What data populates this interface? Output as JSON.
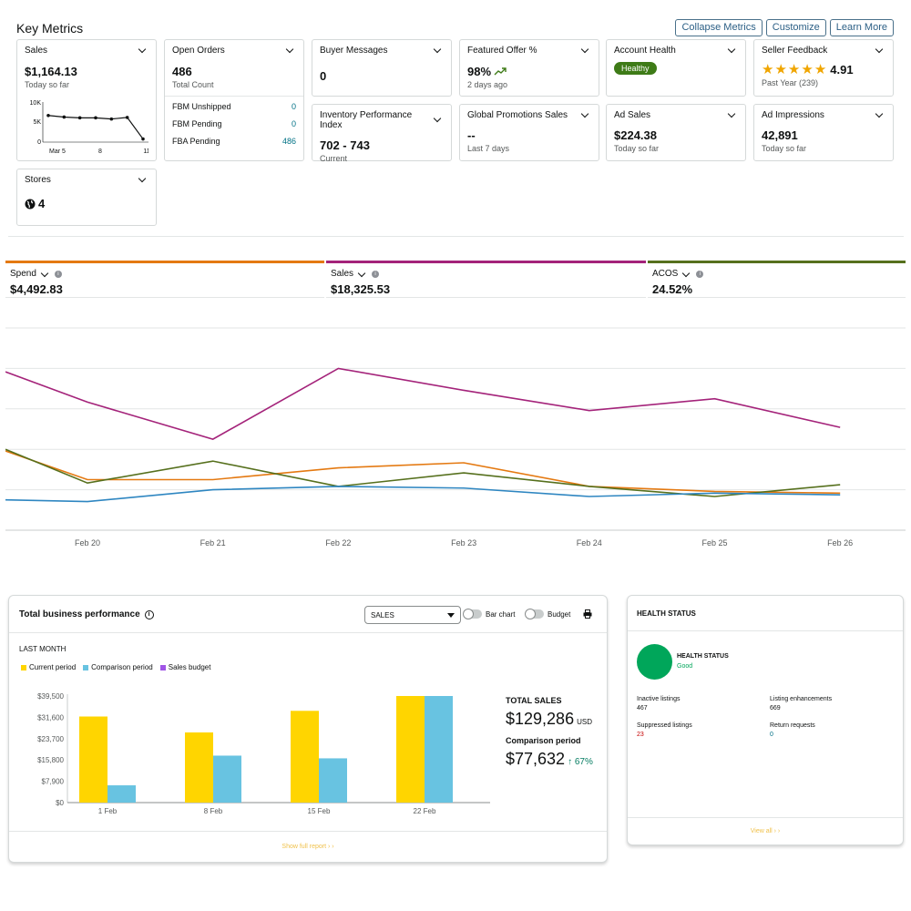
{
  "key_metrics": {
    "title": "Key Metrics",
    "actions": [
      "Collapse Metrics",
      "Customize",
      "Learn More"
    ],
    "sales": {
      "label": "Sales",
      "value": "$1,164.13",
      "sub": "Today so far",
      "sparkline": {
        "y_ticks": [
          "10K",
          "5K",
          "0"
        ],
        "x_ticks": [
          "Mar 5",
          "8",
          "11"
        ],
        "values": [
          6800,
          6400,
          6200,
          6200,
          5900,
          6300,
          800
        ]
      }
    },
    "open_orders": {
      "label": "Open Orders",
      "value": "486",
      "sub": "Total Count",
      "rows": [
        {
          "label": "FBM Unshipped",
          "value": "0"
        },
        {
          "label": "FBM Pending",
          "value": "0"
        },
        {
          "label": "FBA Pending",
          "value": "486"
        }
      ]
    },
    "buyer_messages": {
      "label": "Buyer Messages",
      "value": "0"
    },
    "featured_offer": {
      "label": "Featured Offer %",
      "value": "98%",
      "sub": "2 days ago"
    },
    "account_health": {
      "label": "Account Health",
      "status": "Healthy"
    },
    "seller_feedback": {
      "label": "Seller Feedback",
      "rating": "4.91",
      "stars": 5,
      "sub": "Past Year (239)"
    },
    "inventory": {
      "label": "Inventory Performance Index",
      "value": "702 - 743",
      "sub": "Current"
    },
    "global_promotions": {
      "label": "Global Promotions Sales",
      "value": "--",
      "sub": "Last 7 days"
    },
    "ad_sales": {
      "label": "Ad Sales",
      "value": "$224.38",
      "sub": "Today so far"
    },
    "ad_impressions": {
      "label": "Ad Impressions",
      "value": "42,891",
      "sub": "Today so far"
    },
    "stores": {
      "label": "Stores",
      "value": "4"
    }
  },
  "campaign": {
    "tabs": [
      {
        "label": "Spend",
        "value": "$4,492.83",
        "color": "#e47911"
      },
      {
        "label": "Sales",
        "value": "$18,325.53",
        "color": "#a4237a"
      },
      {
        "label": "ACOS",
        "value": "24.52%",
        "color": "#56701d"
      }
    ],
    "chart_data": {
      "type": "line",
      "x": [
        "Feb 20",
        "Feb 21",
        "Feb 22",
        "Feb 23",
        "Feb 24",
        "Feb 25",
        "Feb 26"
      ],
      "series": [
        {
          "color": "#a4237a",
          "values": [
            76,
            54,
            96,
            83,
            71,
            78,
            61
          ]
        },
        {
          "color": "#e47911",
          "values": [
            30,
            30,
            37,
            40,
            26,
            23,
            22
          ]
        },
        {
          "color": "#56701d",
          "values": [
            28,
            41,
            26,
            34,
            26,
            20,
            27
          ]
        },
        {
          "color": "#2e86c1",
          "values": [
            17,
            24,
            26,
            25,
            20,
            22,
            21
          ]
        }
      ],
      "start_values": [
        94,
        47,
        48,
        18
      ],
      "ylim": [
        0,
        120
      ]
    }
  },
  "tbp": {
    "title": "Total business performance",
    "select": "SALES",
    "toggles": [
      "Bar chart",
      "Budget"
    ],
    "period": "LAST MONTH",
    "legend": [
      {
        "label": "Current period",
        "color": "#ffd500"
      },
      {
        "label": "Comparison period",
        "color": "#68c3e1"
      },
      {
        "label": "Sales budget",
        "color": "#a055e6"
      }
    ],
    "chart_data": {
      "type": "bar",
      "categories": [
        "1 Feb",
        "8 Feb",
        "15 Feb",
        "22 Feb"
      ],
      "series": [
        {
          "name": "Current period",
          "values": [
            31900,
            26000,
            34000,
            39500
          ]
        },
        {
          "name": "Comparison period",
          "values": [
            6400,
            17400,
            16400,
            39500
          ]
        }
      ],
      "y_ticks": [
        "$0",
        "$7,900",
        "$15,800",
        "$23,700",
        "$31,600",
        "$39,500"
      ],
      "ylim": [
        0,
        39500
      ]
    },
    "total_label": "TOTAL SALES",
    "total_value": "$129,286",
    "total_unit": "USD",
    "comparison_label": "Comparison period",
    "comparison_value": "$77,632",
    "comparison_change": "↑ 67%",
    "link": "Show full report › ›"
  },
  "health": {
    "title": "HEALTH STATUS",
    "status_label": "HEALTH STATUS",
    "status_value": "Good",
    "items": [
      {
        "label": "Inactive listings",
        "value": "467"
      },
      {
        "label": "Listing enhancements",
        "value": "669"
      },
      {
        "label": "Suppressed listings",
        "value": "23"
      },
      {
        "label": "Return requests",
        "value": "0"
      }
    ],
    "link": "View all › ›"
  }
}
